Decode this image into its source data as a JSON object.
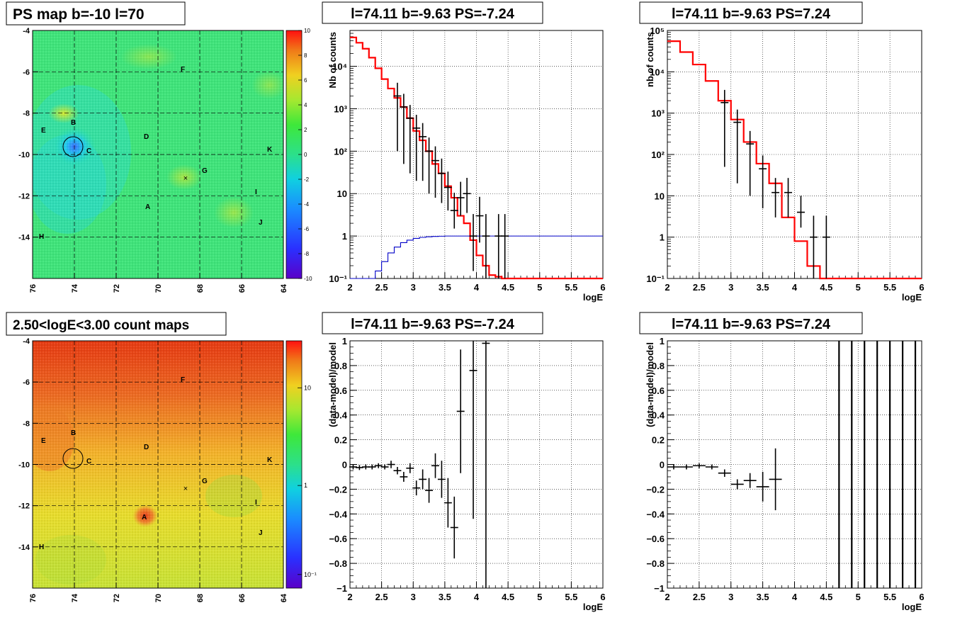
{
  "colors": {
    "data_marker": "#000000",
    "model_line": "#ff0000",
    "efficiency_line": "#0000c8",
    "grid": "#000000",
    "map_circle": "#000000"
  },
  "map_labels": {
    "A": "A",
    "B": "B",
    "C": "C",
    "D": "D",
    "E": "E",
    "F": "F",
    "G": "G",
    "H": "H",
    "I": "I",
    "J": "J",
    "K": "K",
    "cross": "×"
  },
  "maps": [
    {
      "title": "PS map b=-10 l=70",
      "x_ticks": [
        "76",
        "74",
        "72",
        "70",
        "68",
        "66",
        "64"
      ],
      "y_ticks": [
        "-4",
        "-6",
        "-8",
        "-10",
        "-12",
        "-14"
      ],
      "x_range": [
        76,
        64
      ],
      "y_range": [
        -4,
        -16
      ],
      "colorbar_scale": "linear",
      "colorbar_ticks": [
        "10",
        "8",
        "6",
        "4",
        "2",
        "0",
        "-2",
        "-4",
        "-6",
        "-8",
        "-10"
      ],
      "colorbar_range": [
        -10,
        10
      ]
    },
    {
      "title": "2.50<logE<3.00 count maps",
      "x_ticks": [
        "76",
        "74",
        "72",
        "70",
        "68",
        "66",
        "64"
      ],
      "y_ticks": [
        "-4",
        "-6",
        "-8",
        "-10",
        "-12",
        "-14"
      ],
      "x_range": [
        76,
        64
      ],
      "y_range": [
        -4,
        -16
      ],
      "colorbar_scale": "log",
      "colorbar_ticks": [
        "10",
        "1",
        "10⁻¹"
      ]
    }
  ],
  "chart_data": [
    {
      "type": "line",
      "title": "l=74.11 b=-9.63 PS=-7.24",
      "xlabel": "logE",
      "ylabel": "Nb of counts",
      "yscale": "log",
      "xlim": [
        2,
        6
      ],
      "ylim": [
        0.1,
        70000
      ],
      "grid": true,
      "x_ticks": [
        "2",
        "2.5",
        "3",
        "3.5",
        "4",
        "4.5",
        "5",
        "5.5",
        "6"
      ],
      "y_ticks": [
        "10⁻¹",
        "1",
        "10",
        "10²",
        "10³",
        "10⁴"
      ],
      "series": [
        {
          "kind": "step",
          "color": "red",
          "bin_width": 0.1,
          "x": [
            2.0,
            2.1,
            2.2,
            2.3,
            2.4,
            2.5,
            2.6,
            2.7,
            2.8,
            2.9,
            3.0,
            3.1,
            3.2,
            3.3,
            3.4,
            3.5,
            3.6,
            3.7,
            3.8,
            3.9,
            4.0,
            4.1,
            4.2,
            4.3,
            4.4
          ],
          "y": [
            48000,
            36000,
            26000,
            16000,
            9000,
            5000,
            3000,
            1800,
            1100,
            600,
            300,
            180,
            100,
            50,
            30,
            15,
            8,
            3,
            2,
            0.8,
            0.35,
            0.2,
            0.12,
            0.11,
            0.1
          ]
        },
        {
          "kind": "step",
          "color": "blue",
          "bin_width": 0.1,
          "x": [
            2.0,
            2.1,
            2.2,
            2.3,
            2.4,
            2.5,
            2.6,
            2.7,
            2.8,
            2.9,
            3.0,
            3.1,
            3.2,
            3.3,
            3.4,
            3.5
          ],
          "y": [
            0.1,
            0.1,
            0.1,
            0.1,
            0.15,
            0.25,
            0.4,
            0.55,
            0.7,
            0.8,
            0.88,
            0.93,
            0.96,
            0.98,
            0.99,
            1.0
          ]
        },
        {
          "kind": "points",
          "color": "black",
          "x": [
            2.75,
            2.85,
            2.95,
            3.05,
            3.15,
            3.25,
            3.35,
            3.45,
            3.55,
            3.65,
            3.75,
            3.85,
            3.95,
            4.05,
            4.15,
            4.35,
            4.45
          ],
          "y": [
            2000,
            1100,
            600,
            350,
            220,
            100,
            60,
            30,
            14,
            4,
            8,
            10,
            1,
            3,
            1,
            1,
            1
          ],
          "yerr_lo": [
            1900,
            1050,
            570,
            330,
            200,
            90,
            52,
            24,
            10,
            2.5,
            5,
            6.5,
            0.85,
            2.3,
            0.9,
            0.9,
            0.9
          ],
          "yerr_hi": [
            2100,
            1150,
            630,
            370,
            240,
            110,
            70,
            37,
            19,
            6.5,
            11,
            13.5,
            2.3,
            5.4,
            2.3,
            2.3,
            2.3
          ]
        }
      ]
    },
    {
      "type": "line",
      "title": "l=74.11 b=-9.63 PS=7.24",
      "xlabel": "logE",
      "ylabel": "nb of counts",
      "yscale": "log",
      "xlim": [
        2,
        6
      ],
      "ylim": [
        0.1,
        100000
      ],
      "grid": true,
      "x_ticks": [
        "2",
        "2.5",
        "3",
        "3.5",
        "4",
        "4.5",
        "5",
        "5.5",
        "6"
      ],
      "y_ticks": [
        "10⁻¹",
        "1",
        "10",
        "10²",
        "10³",
        "10⁴",
        "10⁵"
      ],
      "series": [
        {
          "kind": "step",
          "color": "red",
          "bin_width": 0.2,
          "x": [
            2.0,
            2.2,
            2.4,
            2.6,
            2.8,
            3.0,
            3.2,
            3.4,
            3.6,
            3.8,
            4.0,
            4.2,
            4.4
          ],
          "y": [
            55000,
            30000,
            15000,
            6000,
            2000,
            700,
            200,
            60,
            20,
            3,
            0.8,
            0.2,
            0.1
          ]
        },
        {
          "kind": "points",
          "color": "black",
          "x": [
            2.9,
            3.1,
            3.3,
            3.5,
            3.7,
            3.9,
            4.1,
            4.3,
            4.5
          ],
          "y": [
            1800,
            600,
            180,
            45,
            12,
            12,
            4,
            1,
            1
          ],
          "yerr_lo": [
            1750,
            580,
            170,
            40,
            9,
            9,
            2.3,
            0.9,
            0.9
          ],
          "yerr_hi": [
            1850,
            620,
            190,
            50,
            15,
            15,
            6,
            2.3,
            2.3
          ]
        }
      ]
    },
    {
      "type": "scatter",
      "title": "l=74.11 b=-9.63 PS=-7.24",
      "xlabel": "logE",
      "ylabel": "(data-model)/model",
      "xlim": [
        2,
        6
      ],
      "ylim": [
        -1,
        1
      ],
      "grid": true,
      "x_ticks": [
        "2",
        "2.5",
        "3",
        "3.5",
        "4",
        "4.5",
        "5",
        "5.5",
        "6"
      ],
      "y_ticks": [
        "−1",
        "−0.8",
        "−0.6",
        "−0.4",
        "−0.2",
        "0",
        "0.2",
        "0.4",
        "0.6",
        "0.8",
        "1"
      ],
      "series": [
        {
          "kind": "points",
          "color": "black",
          "x": [
            2.05,
            2.15,
            2.25,
            2.35,
            2.45,
            2.55,
            2.65,
            2.75,
            2.85,
            2.95,
            3.05,
            3.15,
            3.25,
            3.35,
            3.45,
            3.55,
            3.65,
            3.75,
            3.95,
            4.15
          ],
          "y": [
            -0.02,
            -0.025,
            -0.02,
            -0.02,
            -0.01,
            -0.02,
            0.0,
            -0.05,
            -0.1,
            -0.03,
            -0.19,
            -0.12,
            -0.21,
            -0.01,
            -0.12,
            -0.31,
            -0.51,
            0.43,
            0.76,
            0.98
          ],
          "yerr": [
            0.02,
            0.02,
            0.02,
            0.02,
            0.02,
            0.02,
            0.03,
            0.03,
            0.04,
            0.04,
            0.06,
            0.08,
            0.1,
            0.1,
            0.15,
            0.2,
            0.25,
            0.5,
            1.2,
            2.5
          ]
        }
      ]
    },
    {
      "type": "scatter",
      "title": "l=74.11 b=-9.63 PS=7.24",
      "xlabel": "logE",
      "ylabel": "(data-model)/model",
      "xlim": [
        2,
        6
      ],
      "ylim": [
        -1,
        1
      ],
      "grid": true,
      "x_ticks": [
        "2",
        "2.5",
        "3",
        "3.5",
        "4",
        "4.5",
        "5",
        "5.5",
        "6"
      ],
      "y_ticks": [
        "−1",
        "−0.8",
        "−0.6",
        "−0.4",
        "−0.2",
        "0",
        "0.2",
        "0.4",
        "0.6",
        "0.8",
        "1"
      ],
      "series": [
        {
          "kind": "points",
          "color": "black",
          "x": [
            2.1,
            2.3,
            2.5,
            2.7,
            2.9,
            3.1,
            3.3,
            3.5,
            3.7
          ],
          "y": [
            -0.02,
            -0.02,
            -0.01,
            -0.02,
            -0.07,
            -0.16,
            -0.13,
            -0.18,
            -0.12
          ],
          "yerr": [
            0.02,
            0.02,
            0.02,
            0.02,
            0.03,
            0.04,
            0.06,
            0.12,
            0.25
          ],
          "xerr": [
            0.1,
            0.1,
            0.1,
            0.1,
            0.1,
            0.1,
            0.1,
            0.1,
            0.1
          ]
        },
        {
          "kind": "vlines",
          "color": "black",
          "x": [
            4.7,
            4.9,
            5.1,
            5.3,
            5.5,
            5.7,
            5.9
          ]
        }
      ]
    }
  ]
}
